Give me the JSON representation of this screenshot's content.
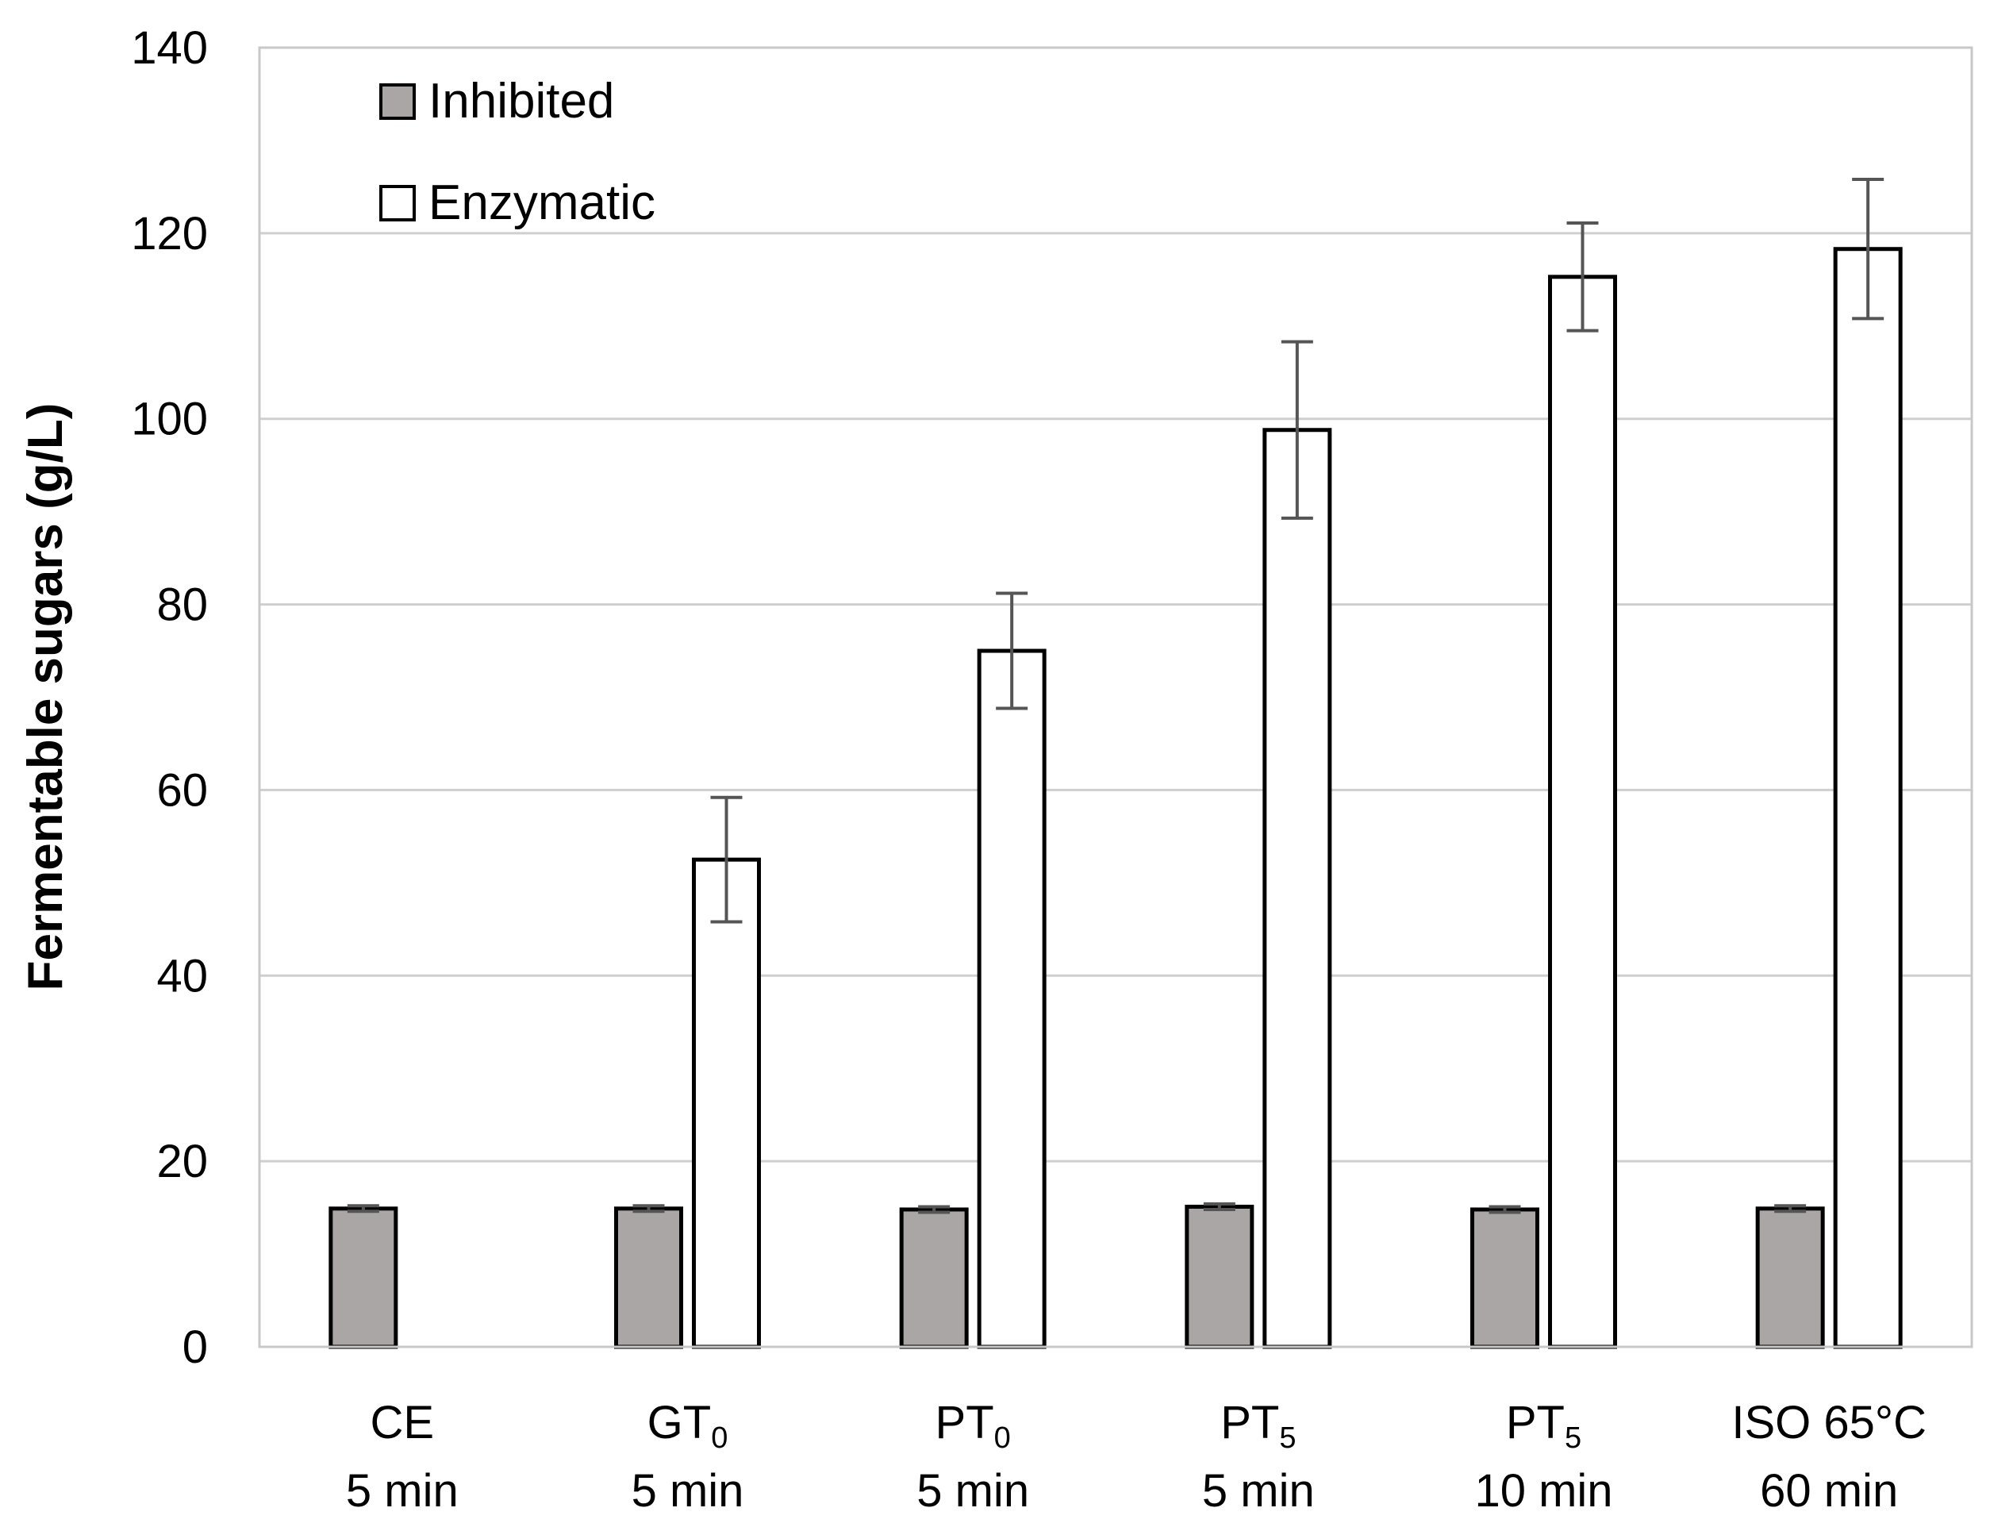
{
  "chart_data": {
    "type": "bar",
    "title": "",
    "xlabel": "",
    "ylabel": "Fermentable sugars (g/L)",
    "ylim": [
      0,
      140
    ],
    "yticks": [
      0,
      20,
      40,
      60,
      80,
      100,
      120,
      140
    ],
    "grid": true,
    "legend_position": "top-left",
    "categories": [
      {
        "main": "CE",
        "sub": "",
        "line2": "5 min"
      },
      {
        "main": "GT",
        "sub": "0",
        "line2": "5 min"
      },
      {
        "main": "PT",
        "sub": "0",
        "line2": "5 min"
      },
      {
        "main": "PT",
        "sub": "5",
        "line2": "5 min"
      },
      {
        "main": "PT",
        "sub": "5",
        "line2": "10 min"
      },
      {
        "main": "ISO 65°C",
        "sub": "",
        "line2": "60 min"
      }
    ],
    "series": [
      {
        "name": "Inhibited",
        "color": "#aaa6a6",
        "values": [
          14.9,
          14.9,
          14.8,
          15.1,
          14.8,
          14.9
        ],
        "errors": [
          0.3,
          0.3,
          0.3,
          0.3,
          0.3,
          0.3
        ]
      },
      {
        "name": "Enzymatic",
        "color": "#ffffff",
        "values": [
          null,
          52.5,
          75.0,
          98.8,
          115.3,
          118.3
        ],
        "errors": [
          null,
          6.7,
          6.2,
          9.5,
          5.8,
          7.5
        ]
      }
    ]
  }
}
